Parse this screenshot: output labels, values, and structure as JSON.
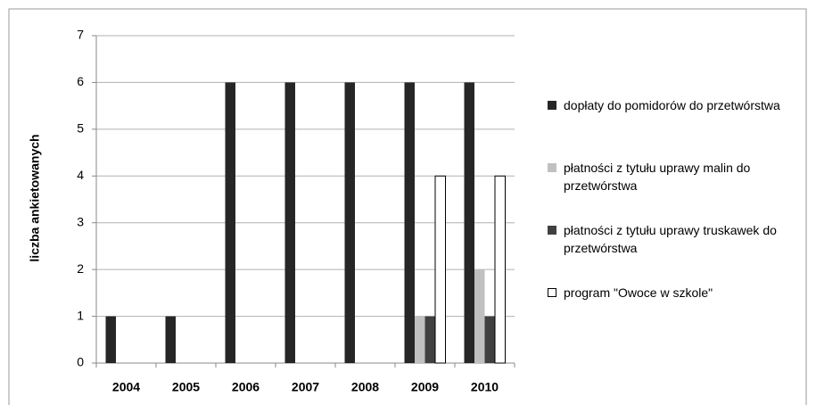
{
  "chart_data": {
    "type": "bar",
    "y_label": "liczba ankietowanych",
    "categories": [
      "2004",
      "2005",
      "2006",
      "2007",
      "2008",
      "2009",
      "2010"
    ],
    "series": [
      {
        "name": "dopłaty do pomidorów do przetwórstwa",
        "color": "#262626",
        "values": [
          1,
          1,
          6,
          6,
          6,
          6,
          6
        ]
      },
      {
        "name": "płatności z tytułu uprawy malin do przetwórstwa",
        "color": "#c0c0c0",
        "values": [
          0,
          0,
          0,
          0,
          0,
          1,
          2
        ]
      },
      {
        "name": "płatności z tytułu uprawy truskawek do przetwórstwa",
        "color": "#404040",
        "values": [
          0,
          0,
          0,
          0,
          0,
          1,
          1
        ]
      },
      {
        "name": "program \"Owoce w szkole\"",
        "color": "#ffffff",
        "values": [
          0,
          0,
          0,
          0,
          0,
          4,
          4
        ]
      }
    ],
    "ylim": [
      0,
      7
    ],
    "yticks": [
      0,
      1,
      2,
      3,
      4,
      5,
      6,
      7
    ],
    "grid": true,
    "legend": "right"
  }
}
